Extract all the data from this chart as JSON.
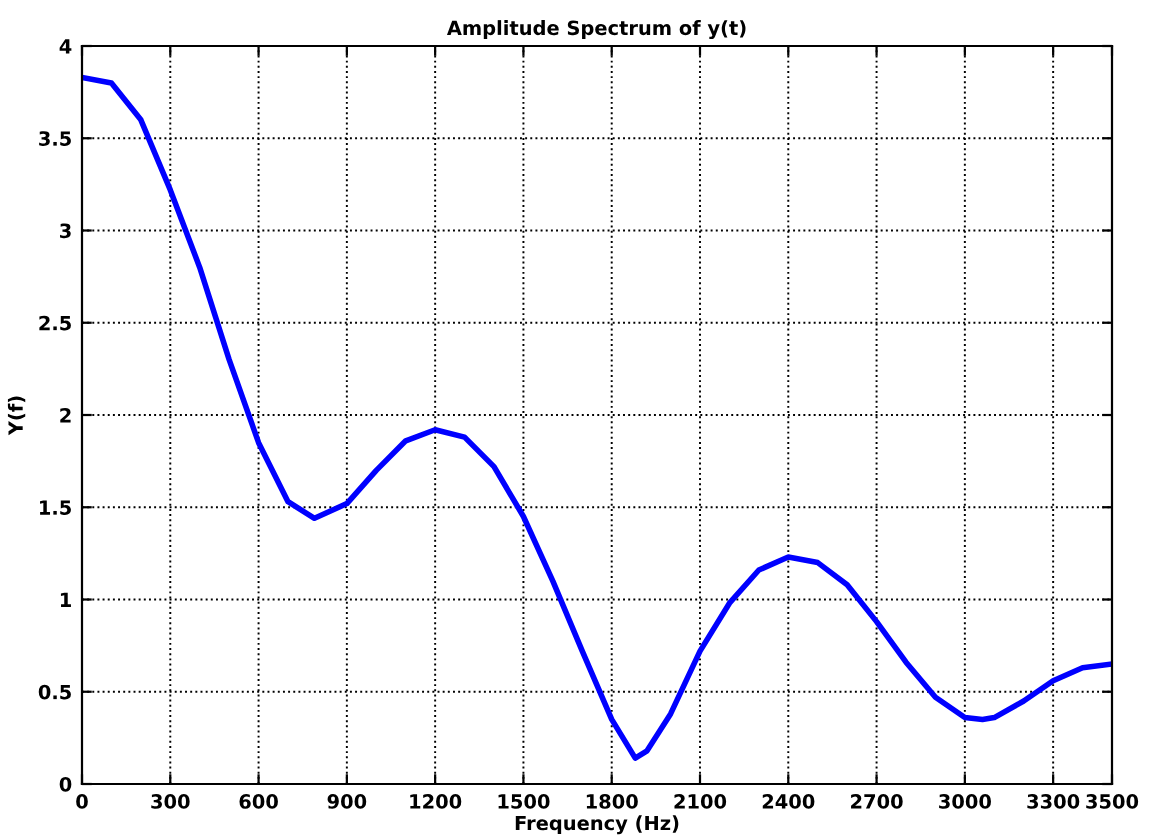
{
  "chart_data": {
    "type": "line",
    "title": "Amplitude Spectrum of y(t)",
    "xlabel": "Frequency (Hz)",
    "ylabel": "Y(f)",
    "x": [
      0,
      100,
      200,
      300,
      400,
      500,
      600,
      700,
      790,
      900,
      1000,
      1100,
      1200,
      1300,
      1400,
      1500,
      1600,
      1700,
      1800,
      1880,
      1920,
      2000,
      2100,
      2200,
      2300,
      2400,
      2500,
      2600,
      2700,
      2800,
      2900,
      3000,
      3060,
      3100,
      3200,
      3300,
      3400,
      3500
    ],
    "series": [
      {
        "color": "#0000ff",
        "values": [
          3.83,
          3.8,
          3.6,
          3.22,
          2.8,
          2.3,
          1.85,
          1.53,
          1.44,
          1.52,
          1.7,
          1.86,
          1.92,
          1.88,
          1.72,
          1.45,
          1.1,
          0.72,
          0.35,
          0.14,
          0.18,
          0.38,
          0.72,
          0.98,
          1.16,
          1.23,
          1.2,
          1.08,
          0.88,
          0.66,
          0.47,
          0.36,
          0.35,
          0.36,
          0.45,
          0.56,
          0.63,
          0.65
        ]
      }
    ],
    "xlim": [
      0,
      3500
    ],
    "xticks": [
      0,
      300,
      600,
      900,
      1200,
      1500,
      1800,
      2100,
      2400,
      2700,
      3000,
      3300,
      3500
    ],
    "ylim": [
      0,
      4
    ],
    "yticks": [
      0,
      0.5,
      1,
      1.5,
      2,
      2.5,
      3,
      3.5,
      4
    ],
    "grid": true,
    "line_style": "solid",
    "marker": "none",
    "legend": false
  }
}
